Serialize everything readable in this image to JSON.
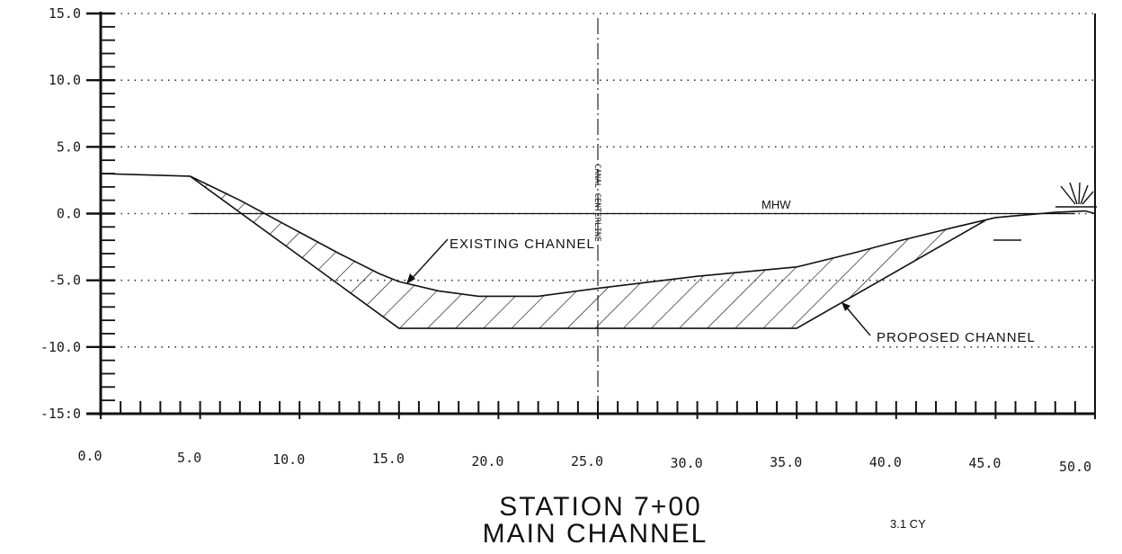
{
  "chart_data": {
    "type": "line",
    "x_ticks": [
      "0.0",
      "5.0",
      "10.0",
      "15.0",
      "20.0",
      "25.0",
      "30.0",
      "35.0",
      "40.0",
      "45.0",
      "50.0"
    ],
    "y_ticks": [
      "15.0",
      "10.0",
      "5.0",
      "0.0",
      "-5.0",
      "-10.0",
      "-15:0"
    ],
    "xlim": [
      0,
      50
    ],
    "ylim": [
      -15,
      15
    ],
    "grid": "dotted horizontal",
    "series": [
      {
        "name": "EXISTING CHANNEL",
        "x": [
          0,
          4.5,
          7,
          10,
          12,
          14,
          15,
          17,
          19,
          22,
          25,
          30,
          35,
          38,
          40,
          43,
          45,
          46.5,
          48,
          49.5,
          50
        ],
        "y": [
          3.0,
          2.8,
          1.0,
          -1.4,
          -3.0,
          -4.5,
          -5.1,
          -5.8,
          -6.2,
          -6.2,
          -5.6,
          -4.7,
          -4.0,
          -2.9,
          -2.1,
          -1.0,
          -0.3,
          -0.1,
          0.1,
          0.2,
          0.0
        ]
      },
      {
        "name": "PROPOSED CHANNEL",
        "x": [
          4.5,
          15,
          35,
          44.5
        ],
        "y": [
          2.8,
          -8.6,
          -8.6,
          -0.5
        ]
      }
    ],
    "reference_lines": [
      {
        "label": "MHW",
        "y": 0.0
      },
      {
        "label": "CANAL CENTERLINE",
        "x": 25
      }
    ],
    "labels": {
      "existing": "EXISTING CHANNEL",
      "proposed": "PROPOSED CHANNEL",
      "mhw": "MHW",
      "centerline": "CANAL CENTERLINE"
    },
    "title": "STATION 7+00",
    "subtitle": "MAIN CHANNEL",
    "note": "3.1 CY"
  },
  "colors": {
    "ink": "#111111",
    "grid": "#333333",
    "paper": "#ffffff"
  }
}
